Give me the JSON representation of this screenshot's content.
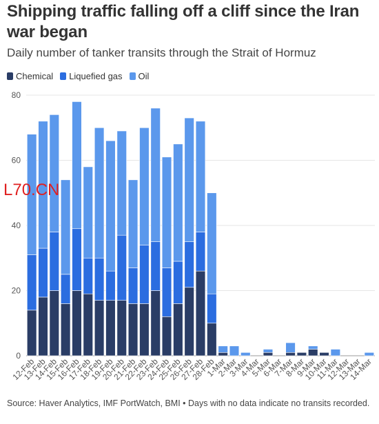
{
  "header": {
    "title": "Shipping traffic falling off a cliff since the Iran war began",
    "subtitle": "Daily number of tanker transits through the Strait of Hormuz"
  },
  "legend": {
    "items": [
      {
        "label": "Chemical",
        "color": "#2a3d66"
      },
      {
        "label": "Liquefied gas",
        "color": "#2b6de0"
      },
      {
        "label": "Oil",
        "color": "#5b98ec"
      }
    ]
  },
  "watermark": "L70.CN",
  "source": "Source: Haver Analytics, IMF PortWatch, BMI • Days with no data indicate no transits recorded.",
  "chart_data": {
    "type": "bar",
    "stacked": true,
    "categories": [
      "12-Feb",
      "13-Feb",
      "14-Feb",
      "15-Feb",
      "16-Feb",
      "17-Feb",
      "18-Feb",
      "19-Feb",
      "20-Feb",
      "21-Feb",
      "22-Feb",
      "23-Feb",
      "24-Feb",
      "25-Feb",
      "26-Feb",
      "27-Feb",
      "28-Feb",
      "1-Mar",
      "2-Mar",
      "3-Mar",
      "4-Mar",
      "5-Mar",
      "6-Mar",
      "7-Mar",
      "8-Mar",
      "9-Mar",
      "10-Mar",
      "11-Mar",
      "12-Mar",
      "13-Mar",
      "14-Mar"
    ],
    "series": [
      {
        "name": "Chemical",
        "color": "#2a3d66",
        "values": [
          14,
          18,
          20,
          16,
          20,
          19,
          17,
          17,
          17,
          16,
          16,
          20,
          12,
          16,
          21,
          26,
          10,
          1,
          0,
          0,
          0,
          1,
          0,
          1,
          1,
          2,
          1,
          0,
          0,
          0,
          0
        ]
      },
      {
        "name": "Liquefied gas",
        "color": "#2b6de0",
        "values": [
          17,
          15,
          18,
          9,
          19,
          11,
          13,
          9,
          20,
          11,
          18,
          15,
          15,
          13,
          14,
          12,
          9,
          0,
          0,
          0,
          0,
          0,
          0,
          0,
          0,
          0,
          0,
          0,
          0,
          0,
          0
        ]
      },
      {
        "name": "Oil",
        "color": "#5b98ec",
        "values": [
          37,
          39,
          36,
          29,
          39,
          28,
          40,
          40,
          32,
          27,
          36,
          41,
          34,
          36,
          38,
          34,
          31,
          2,
          3,
          1,
          0,
          1,
          0,
          3,
          0,
          1,
          0,
          2,
          0,
          0,
          1
        ]
      }
    ],
    "ylim": [
      0,
      80
    ],
    "yticks": [
      0,
      20,
      40,
      60,
      80
    ],
    "grid": true,
    "legend_position": "top-left",
    "xlabel": "",
    "ylabel": ""
  }
}
